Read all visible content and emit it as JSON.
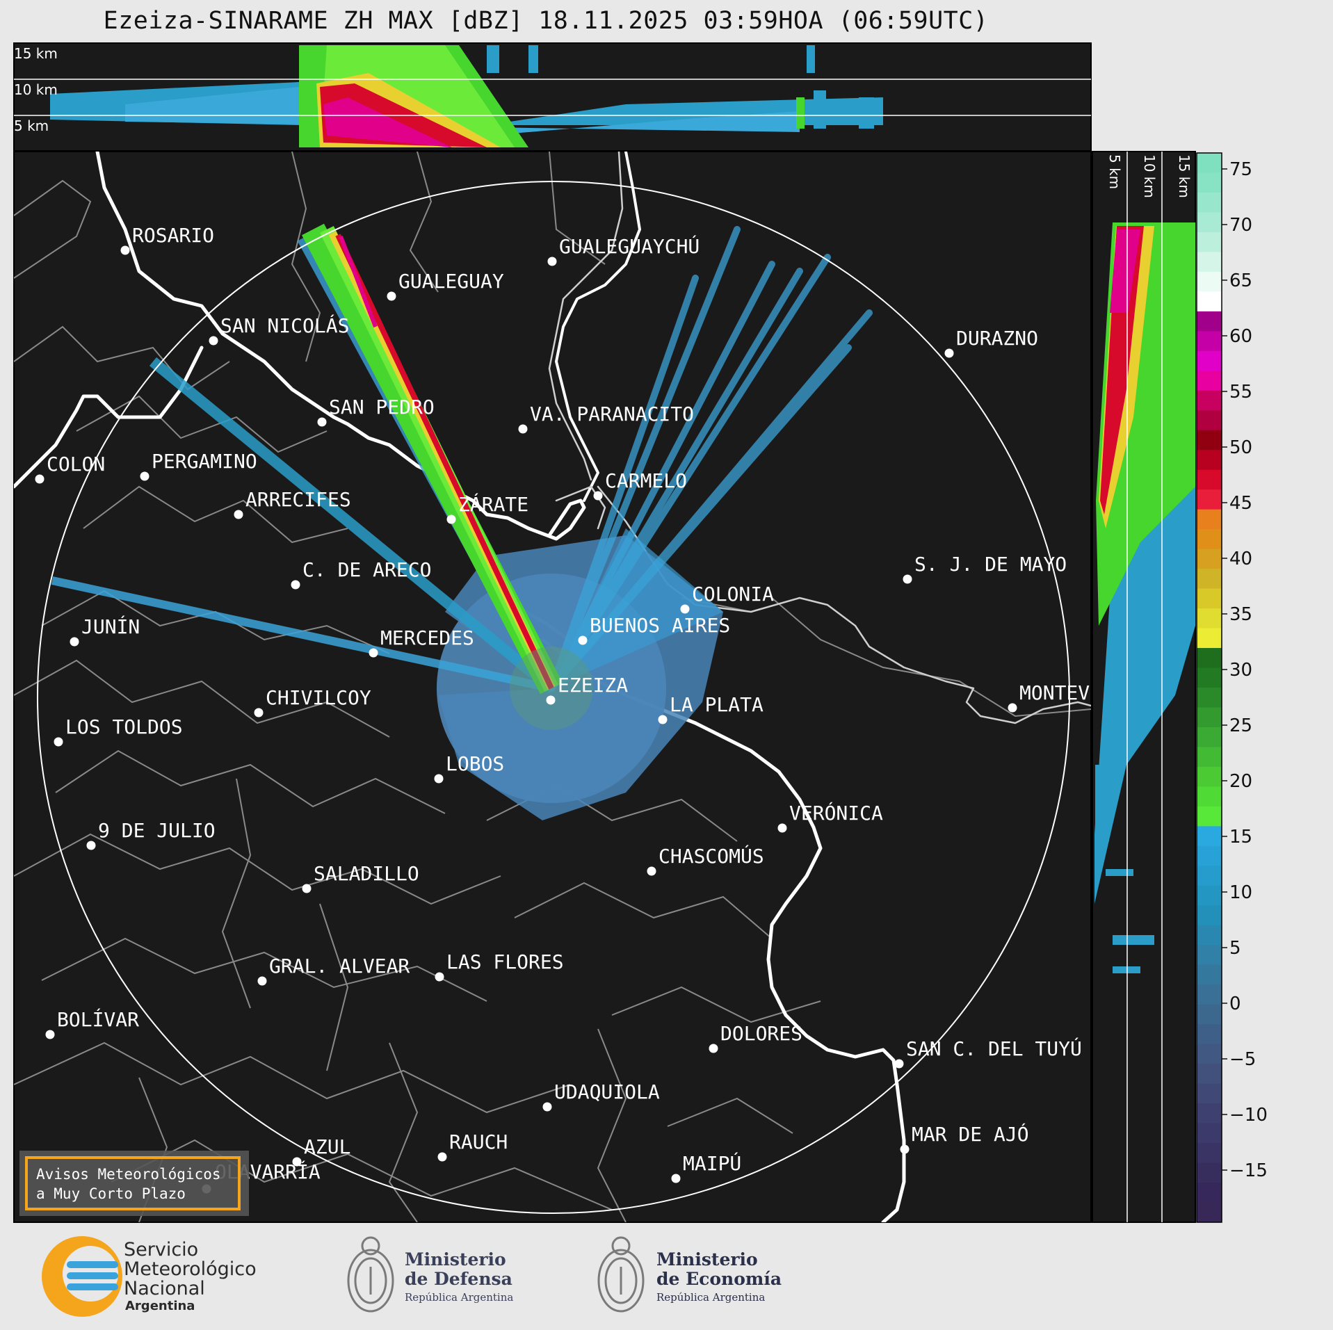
{
  "title": "Ezeiza-SINARAME ZH MAX [dBZ] 18.11.2025 03:59HOA (06:59UTC)",
  "top_panel_labels": [
    "15 km",
    "10 km",
    "5 km"
  ],
  "side_panel_labels": [
    "5 km",
    "10 km",
    "15 km"
  ],
  "cities": [
    {
      "name": "ROSARIO"
    },
    {
      "name": "GUALEGUAYCHÚ"
    },
    {
      "name": "GUALEGUAY"
    },
    {
      "name": "SAN NICOLÁS"
    },
    {
      "name": "DURAZNO"
    },
    {
      "name": "SAN PEDRO"
    },
    {
      "name": "VA. PARANACITO"
    },
    {
      "name": "COLON"
    },
    {
      "name": "PERGAMINO"
    },
    {
      "name": "CARMELO"
    },
    {
      "name": "ARRECIFES"
    },
    {
      "name": "ZÁRATE"
    },
    {
      "name": "S. J. DE MAYO"
    },
    {
      "name": "C. DE ARECO"
    },
    {
      "name": "COLONIA"
    },
    {
      "name": "JUNÍN"
    },
    {
      "name": "BUENOS AIRES"
    },
    {
      "name": "MERCEDES"
    },
    {
      "name": "EZEIZA"
    },
    {
      "name": "MONTEVIDEO"
    },
    {
      "name": "CHIVILCOY"
    },
    {
      "name": "LA PLATA"
    },
    {
      "name": "LOS TOLDOS"
    },
    {
      "name": "LOBOS"
    },
    {
      "name": "VERÓNICA"
    },
    {
      "name": "9 DE JULIO"
    },
    {
      "name": "CHASCOMÚS"
    },
    {
      "name": "SALADILLO"
    },
    {
      "name": "GRAL. ALVEAR"
    },
    {
      "name": "LAS FLORES"
    },
    {
      "name": "BOLÍVAR"
    },
    {
      "name": "DOLORES"
    },
    {
      "name": "SAN C. DEL TUYÚ"
    },
    {
      "name": "UDAQUIOLA"
    },
    {
      "name": "MAR DE AJÓ"
    },
    {
      "name": "AZUL"
    },
    {
      "name": "RAUCH"
    },
    {
      "name": "OLAVARRÍA"
    },
    {
      "name": "MAIPÚ"
    }
  ],
  "warning_box": {
    "line1": "Avisos Meteorológicos",
    "line2": "a Muy Corto Plazo"
  },
  "colorbar": {
    "ticks": [
      "75",
      "70",
      "65",
      "60",
      "55",
      "50",
      "45",
      "40",
      "35",
      "30",
      "25",
      "20",
      "15",
      "10",
      "5",
      "0",
      "−5",
      "−10",
      "−15"
    ]
  },
  "footer": {
    "smn": {
      "line1": "Servicio",
      "line2": "Meteorológico",
      "line3": "Nacional",
      "line4": "Argentina"
    },
    "defensa": {
      "line1": "Ministerio",
      "line2": "de Defensa",
      "line3": "República Argentina"
    },
    "economia": {
      "line1": "Ministerio",
      "line2": "de Economía",
      "line3": "República Argentina"
    }
  }
}
